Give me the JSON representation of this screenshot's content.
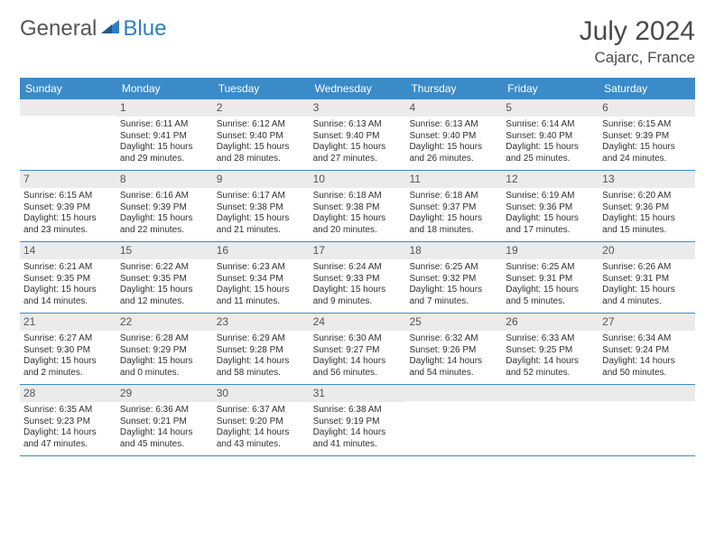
{
  "header": {
    "logo_general": "General",
    "logo_blue": "Blue",
    "month_title": "July 2024",
    "location": "Cajarc, France"
  },
  "colors": {
    "header_bg": "#3b8bc8",
    "header_text": "#ffffff",
    "daynum_bg": "#ebebeb",
    "daynum_text": "#555555",
    "body_text": "#303030",
    "logo_gray": "#565656",
    "logo_blue": "#2f7fc0",
    "page_bg": "#ffffff",
    "row_border": "#3b8bc8"
  },
  "typography": {
    "title_fontsize": 30,
    "location_fontsize": 17,
    "dayheader_fontsize": 12,
    "daynum_fontsize": 12,
    "cell_fontsize": 10
  },
  "day_names": [
    "Sunday",
    "Monday",
    "Tuesday",
    "Wednesday",
    "Thursday",
    "Friday",
    "Saturday"
  ],
  "weeks": [
    [
      {
        "n": "",
        "lines": []
      },
      {
        "n": "1",
        "lines": [
          "Sunrise: 6:11 AM",
          "Sunset: 9:41 PM",
          "Daylight: 15 hours",
          "and 29 minutes."
        ]
      },
      {
        "n": "2",
        "lines": [
          "Sunrise: 6:12 AM",
          "Sunset: 9:40 PM",
          "Daylight: 15 hours",
          "and 28 minutes."
        ]
      },
      {
        "n": "3",
        "lines": [
          "Sunrise: 6:13 AM",
          "Sunset: 9:40 PM",
          "Daylight: 15 hours",
          "and 27 minutes."
        ]
      },
      {
        "n": "4",
        "lines": [
          "Sunrise: 6:13 AM",
          "Sunset: 9:40 PM",
          "Daylight: 15 hours",
          "and 26 minutes."
        ]
      },
      {
        "n": "5",
        "lines": [
          "Sunrise: 6:14 AM",
          "Sunset: 9:40 PM",
          "Daylight: 15 hours",
          "and 25 minutes."
        ]
      },
      {
        "n": "6",
        "lines": [
          "Sunrise: 6:15 AM",
          "Sunset: 9:39 PM",
          "Daylight: 15 hours",
          "and 24 minutes."
        ]
      }
    ],
    [
      {
        "n": "7",
        "lines": [
          "Sunrise: 6:15 AM",
          "Sunset: 9:39 PM",
          "Daylight: 15 hours",
          "and 23 minutes."
        ]
      },
      {
        "n": "8",
        "lines": [
          "Sunrise: 6:16 AM",
          "Sunset: 9:39 PM",
          "Daylight: 15 hours",
          "and 22 minutes."
        ]
      },
      {
        "n": "9",
        "lines": [
          "Sunrise: 6:17 AM",
          "Sunset: 9:38 PM",
          "Daylight: 15 hours",
          "and 21 minutes."
        ]
      },
      {
        "n": "10",
        "lines": [
          "Sunrise: 6:18 AM",
          "Sunset: 9:38 PM",
          "Daylight: 15 hours",
          "and 20 minutes."
        ]
      },
      {
        "n": "11",
        "lines": [
          "Sunrise: 6:18 AM",
          "Sunset: 9:37 PM",
          "Daylight: 15 hours",
          "and 18 minutes."
        ]
      },
      {
        "n": "12",
        "lines": [
          "Sunrise: 6:19 AM",
          "Sunset: 9:36 PM",
          "Daylight: 15 hours",
          "and 17 minutes."
        ]
      },
      {
        "n": "13",
        "lines": [
          "Sunrise: 6:20 AM",
          "Sunset: 9:36 PM",
          "Daylight: 15 hours",
          "and 15 minutes."
        ]
      }
    ],
    [
      {
        "n": "14",
        "lines": [
          "Sunrise: 6:21 AM",
          "Sunset: 9:35 PM",
          "Daylight: 15 hours",
          "and 14 minutes."
        ]
      },
      {
        "n": "15",
        "lines": [
          "Sunrise: 6:22 AM",
          "Sunset: 9:35 PM",
          "Daylight: 15 hours",
          "and 12 minutes."
        ]
      },
      {
        "n": "16",
        "lines": [
          "Sunrise: 6:23 AM",
          "Sunset: 9:34 PM",
          "Daylight: 15 hours",
          "and 11 minutes."
        ]
      },
      {
        "n": "17",
        "lines": [
          "Sunrise: 6:24 AM",
          "Sunset: 9:33 PM",
          "Daylight: 15 hours",
          "and 9 minutes."
        ]
      },
      {
        "n": "18",
        "lines": [
          "Sunrise: 6:25 AM",
          "Sunset: 9:32 PM",
          "Daylight: 15 hours",
          "and 7 minutes."
        ]
      },
      {
        "n": "19",
        "lines": [
          "Sunrise: 6:25 AM",
          "Sunset: 9:31 PM",
          "Daylight: 15 hours",
          "and 5 minutes."
        ]
      },
      {
        "n": "20",
        "lines": [
          "Sunrise: 6:26 AM",
          "Sunset: 9:31 PM",
          "Daylight: 15 hours",
          "and 4 minutes."
        ]
      }
    ],
    [
      {
        "n": "21",
        "lines": [
          "Sunrise: 6:27 AM",
          "Sunset: 9:30 PM",
          "Daylight: 15 hours",
          "and 2 minutes."
        ]
      },
      {
        "n": "22",
        "lines": [
          "Sunrise: 6:28 AM",
          "Sunset: 9:29 PM",
          "Daylight: 15 hours",
          "and 0 minutes."
        ]
      },
      {
        "n": "23",
        "lines": [
          "Sunrise: 6:29 AM",
          "Sunset: 9:28 PM",
          "Daylight: 14 hours",
          "and 58 minutes."
        ]
      },
      {
        "n": "24",
        "lines": [
          "Sunrise: 6:30 AM",
          "Sunset: 9:27 PM",
          "Daylight: 14 hours",
          "and 56 minutes."
        ]
      },
      {
        "n": "25",
        "lines": [
          "Sunrise: 6:32 AM",
          "Sunset: 9:26 PM",
          "Daylight: 14 hours",
          "and 54 minutes."
        ]
      },
      {
        "n": "26",
        "lines": [
          "Sunrise: 6:33 AM",
          "Sunset: 9:25 PM",
          "Daylight: 14 hours",
          "and 52 minutes."
        ]
      },
      {
        "n": "27",
        "lines": [
          "Sunrise: 6:34 AM",
          "Sunset: 9:24 PM",
          "Daylight: 14 hours",
          "and 50 minutes."
        ]
      }
    ],
    [
      {
        "n": "28",
        "lines": [
          "Sunrise: 6:35 AM",
          "Sunset: 9:23 PM",
          "Daylight: 14 hours",
          "and 47 minutes."
        ]
      },
      {
        "n": "29",
        "lines": [
          "Sunrise: 6:36 AM",
          "Sunset: 9:21 PM",
          "Daylight: 14 hours",
          "and 45 minutes."
        ]
      },
      {
        "n": "30",
        "lines": [
          "Sunrise: 6:37 AM",
          "Sunset: 9:20 PM",
          "Daylight: 14 hours",
          "and 43 minutes."
        ]
      },
      {
        "n": "31",
        "lines": [
          "Sunrise: 6:38 AM",
          "Sunset: 9:19 PM",
          "Daylight: 14 hours",
          "and 41 minutes."
        ]
      },
      {
        "n": "",
        "lines": []
      },
      {
        "n": "",
        "lines": []
      },
      {
        "n": "",
        "lines": []
      }
    ]
  ]
}
